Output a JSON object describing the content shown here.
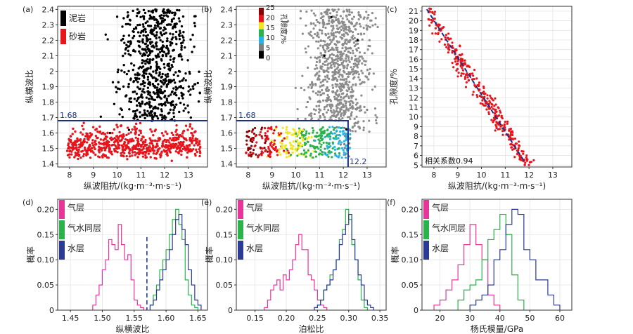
{
  "chart_data": [
    {
      "id": "a",
      "type": "scatter",
      "panel_label": "(a)",
      "xlabel": "纵波阻抗/(kg·m⁻³·m·s⁻¹)",
      "ylabel": "纵横波比",
      "xlim": [
        7.5,
        13.8
      ],
      "ylim": [
        1.38,
        2.42
      ],
      "xticks": [
        8,
        9,
        10,
        11,
        12,
        13
      ],
      "yticks": [
        1.4,
        1.5,
        1.6,
        1.7,
        1.8,
        1.9,
        2.0,
        2.1,
        2.2,
        2.3,
        2.4
      ],
      "grid": true,
      "legend_position": "top-left",
      "series": [
        {
          "name": "泥岩",
          "color": "#000000",
          "sample_points": [
            [
              10.2,
              1.75
            ],
            [
              10.8,
              1.95
            ],
            [
              11.3,
              2.1
            ],
            [
              11.7,
              1.85
            ],
            [
              12.1,
              2.3
            ],
            [
              11.5,
              2.38
            ],
            [
              10.5,
              1.62
            ],
            [
              12.6,
              2.0
            ],
            [
              13.1,
              1.7
            ],
            [
              9.7,
              1.6
            ],
            [
              11.0,
              2.25
            ],
            [
              12.3,
              1.8
            ],
            [
              11.9,
              2.15
            ],
            [
              10.6,
              2.05
            ],
            [
              12.8,
              2.2
            ],
            [
              11.2,
              1.72
            ]
          ]
        },
        {
          "name": "砂岩",
          "color": "#e8141c",
          "sample_points": [
            [
              8.0,
              1.55
            ],
            [
              8.5,
              1.48
            ],
            [
              9.0,
              1.52
            ],
            [
              9.5,
              1.45
            ],
            [
              10.0,
              1.58
            ],
            [
              10.5,
              1.5
            ],
            [
              11.0,
              1.6
            ],
            [
              11.5,
              1.55
            ],
            [
              12.0,
              1.48
            ],
            [
              12.5,
              1.62
            ],
            [
              13.0,
              1.5
            ],
            [
              12.3,
              1.42
            ],
            [
              11.2,
              1.44
            ],
            [
              9.8,
              1.6
            ],
            [
              10.8,
              1.66
            ],
            [
              12.7,
              1.58
            ]
          ]
        }
      ],
      "hline": {
        "y": 1.68,
        "label": "1.68",
        "color": "#1a2f8a"
      }
    },
    {
      "id": "b",
      "type": "scatter",
      "panel_label": "(b)",
      "xlabel": "纵波阻抗/(kg·m⁻³·m·s⁻¹)",
      "ylabel": "纵横波比",
      "xlim": [
        7.5,
        13.8
      ],
      "ylim": [
        1.38,
        2.42
      ],
      "xticks": [
        8,
        9,
        10,
        11,
        12,
        13
      ],
      "yticks": [
        1.4,
        1.5,
        1.6,
        1.7,
        1.8,
        1.9,
        2.0,
        2.1,
        2.2,
        2.3,
        2.4
      ],
      "grid": true,
      "colorbar": {
        "label": "孔隙度/%",
        "ticks": [
          0,
          5,
          10,
          15,
          20,
          25
        ],
        "colors": [
          "#000000",
          "#7f7f7f",
          "#26b5e6",
          "#2bb24a",
          "#f3e51b",
          "#e8141c",
          "#8b0000"
        ]
      },
      "sample_points": [
        [
          8.1,
          1.55,
          22
        ],
        [
          8.6,
          1.5,
          20
        ],
        [
          9.2,
          1.48,
          18
        ],
        [
          9.8,
          1.52,
          16
        ],
        [
          10.3,
          1.56,
          14
        ],
        [
          10.8,
          1.5,
          13
        ],
        [
          11.3,
          1.58,
          12
        ],
        [
          11.8,
          1.5,
          9
        ],
        [
          12.1,
          1.44,
          8
        ],
        [
          11.6,
          1.62,
          10
        ],
        [
          10.5,
          1.8,
          2
        ],
        [
          11.2,
          2.1,
          1
        ],
        [
          12.0,
          1.9,
          2
        ],
        [
          12.6,
          2.2,
          1
        ],
        [
          13.0,
          1.75,
          3
        ],
        [
          11.5,
          2.35,
          1
        ]
      ],
      "hline": {
        "y": 1.68,
        "label": "1.68",
        "color": "#1a2f8a"
      },
      "vline": {
        "x": 12.2,
        "label": "12.2",
        "color": "#1a2f8a"
      }
    },
    {
      "id": "c",
      "type": "scatter",
      "panel_label": "(c)",
      "xlabel": "纵波阻抗/(kg·m⁻³·m·s⁻¹)",
      "ylabel": "孔隙度/%",
      "xlim": [
        7.5,
        13.8
      ],
      "ylim": [
        4.8,
        21.5
      ],
      "xticks": [
        8,
        9,
        10,
        11,
        12,
        13
      ],
      "yticks": [
        5,
        6,
        7,
        8,
        9,
        10,
        11,
        12,
        13,
        14,
        15,
        16,
        17,
        18,
        19,
        20,
        21
      ],
      "grid": true,
      "annotation": "相关系数0.94",
      "fit_line": {
        "x": [
          7.7,
          11.8
        ],
        "y": [
          21.2,
          5.4
        ],
        "color": "#1a2f8a",
        "dash": true
      },
      "series": [
        {
          "name": "",
          "color": "#e8141c",
          "sample_points": [
            [
              7.8,
              21
            ],
            [
              8.0,
              20.2
            ],
            [
              8.3,
              19
            ],
            [
              8.6,
              18.2
            ],
            [
              8.9,
              17
            ],
            [
              9.2,
              16
            ],
            [
              9.5,
              15.2
            ],
            [
              9.8,
              14
            ],
            [
              10.1,
              13
            ],
            [
              10.4,
              12
            ],
            [
              10.7,
              11
            ],
            [
              11.0,
              9.5
            ],
            [
              11.3,
              8.5
            ],
            [
              11.6,
              7
            ],
            [
              11.9,
              6
            ],
            [
              12.2,
              5.5
            ]
          ]
        }
      ]
    },
    {
      "id": "d",
      "type": "histogram",
      "panel_label": "(d)",
      "xlabel": "纵横波比",
      "ylabel": "概率",
      "xlim": [
        1.43,
        1.665
      ],
      "ylim": [
        0,
        0.22
      ],
      "xticks": [
        1.45,
        1.5,
        1.55,
        1.6,
        1.65
      ],
      "xtick_labels": [
        "1.45",
        "1.50",
        "1.55",
        "1.60",
        "1.65"
      ],
      "yticks": [
        0,
        0.05,
        0.1,
        0.15,
        0.2
      ],
      "ytick_labels": [
        "0",
        "0.05",
        "0.10",
        "0.15",
        "0.20"
      ],
      "grid": true,
      "vline": {
        "x": 1.57,
        "color": "#1a2f8a",
        "dash": true
      },
      "legend_position": "top-left",
      "series": [
        {
          "name": "气层",
          "color": "#e8359a",
          "edges": [
            1.485,
            1.49,
            1.495,
            1.5,
            1.505,
            1.51,
            1.515,
            1.52,
            1.525,
            1.53,
            1.535,
            1.54,
            1.545,
            1.55,
            1.555,
            1.56,
            1.565
          ],
          "values": [
            0.01,
            0.03,
            0.05,
            0.08,
            0.1,
            0.14,
            0.13,
            0.12,
            0.17,
            0.13,
            0.1,
            0.11,
            0.06,
            0.02,
            0.01,
            0.005
          ]
        },
        {
          "name": "气水同层",
          "color": "#2bb24a",
          "edges": [
            1.575,
            1.58,
            1.585,
            1.59,
            1.595,
            1.6,
            1.605,
            1.61,
            1.615,
            1.62,
            1.625,
            1.63,
            1.635,
            1.64,
            1.645,
            1.65
          ],
          "values": [
            0.01,
            0.03,
            0.05,
            0.08,
            0.1,
            0.12,
            0.15,
            0.18,
            0.2,
            0.17,
            0.14,
            0.06,
            0.03,
            0.01,
            0.005
          ]
        },
        {
          "name": "水层",
          "color": "#2b3a94",
          "edges": [
            1.575,
            1.58,
            1.585,
            1.59,
            1.595,
            1.6,
            1.605,
            1.61,
            1.615,
            1.62,
            1.625,
            1.63,
            1.635,
            1.64,
            1.645,
            1.65,
            1.655
          ],
          "values": [
            0.01,
            0.02,
            0.04,
            0.06,
            0.08,
            0.1,
            0.12,
            0.15,
            0.18,
            0.19,
            0.16,
            0.13,
            0.08,
            0.05,
            0.02,
            0.01
          ]
        }
      ]
    },
    {
      "id": "e",
      "type": "histogram",
      "panel_label": "(e)",
      "xlabel": "泊松比",
      "ylabel": "概率",
      "xlim": [
        0.12,
        0.36
      ],
      "ylim": [
        0,
        0.22
      ],
      "xticks": [
        0.15,
        0.2,
        0.25,
        0.3,
        0.35
      ],
      "xtick_labels": [
        "0.15",
        "0.20",
        "0.25",
        "0.30",
        "0.35"
      ],
      "yticks": [
        0,
        0.05,
        0.1,
        0.15,
        0.2
      ],
      "ytick_labels": [
        "0",
        "0.05",
        "0.10",
        "0.15",
        "0.20"
      ],
      "grid": true,
      "legend_position": "top-left",
      "series": [
        {
          "name": "气层",
          "color": "#e8359a",
          "edges": [
            0.165,
            0.17,
            0.175,
            0.18,
            0.185,
            0.19,
            0.195,
            0.2,
            0.205,
            0.21,
            0.215,
            0.22,
            0.225,
            0.23,
            0.235,
            0.24,
            0.245,
            0.25,
            0.255,
            0.26,
            0.265
          ],
          "values": [
            0.005,
            0.02,
            0.04,
            0.05,
            0.06,
            0.04,
            0.07,
            0.06,
            0.08,
            0.1,
            0.13,
            0.15,
            0.12,
            0.12,
            0.07,
            0.06,
            0.04,
            0.02,
            0.01,
            0.005
          ]
        },
        {
          "name": "气水同层",
          "color": "#2bb24a",
          "edges": [
            0.245,
            0.25,
            0.255,
            0.26,
            0.265,
            0.27,
            0.275,
            0.28,
            0.285,
            0.29,
            0.295,
            0.3,
            0.305,
            0.31,
            0.315,
            0.32,
            0.325,
            0.33
          ],
          "values": [
            0.005,
            0.01,
            0.02,
            0.04,
            0.05,
            0.07,
            0.08,
            0.1,
            0.14,
            0.16,
            0.2,
            0.18,
            0.13,
            0.1,
            0.06,
            0.02,
            0.005
          ]
        },
        {
          "name": "水层",
          "color": "#2b3a94",
          "edges": [
            0.245,
            0.25,
            0.255,
            0.26,
            0.265,
            0.27,
            0.275,
            0.28,
            0.285,
            0.29,
            0.295,
            0.3,
            0.305,
            0.31,
            0.315,
            0.32,
            0.325,
            0.33,
            0.335,
            0.34
          ],
          "values": [
            0.005,
            0.01,
            0.02,
            0.04,
            0.05,
            0.06,
            0.08,
            0.1,
            0.13,
            0.15,
            0.17,
            0.19,
            0.14,
            0.1,
            0.07,
            0.05,
            0.02,
            0.01,
            0.005
          ]
        }
      ]
    },
    {
      "id": "f",
      "type": "histogram",
      "panel_label": "(f)",
      "xlabel": "杨氏模量/GPa",
      "ylabel": "概率",
      "xlim": [
        14,
        64
      ],
      "ylim": [
        0,
        0.22
      ],
      "xticks": [
        20,
        30,
        40,
        50,
        60
      ],
      "xtick_labels": [
        "20",
        "30",
        "40",
        "50",
        "60"
      ],
      "yticks": [
        0,
        0.05,
        0.1,
        0.15,
        0.2
      ],
      "ytick_labels": [
        "0",
        "0.05",
        "0.10",
        "0.15",
        "0.20"
      ],
      "grid": true,
      "legend_position": "top-left",
      "series": [
        {
          "name": "气层",
          "color": "#e8359a",
          "edges": [
            18,
            20,
            22,
            24,
            26,
            28,
            30,
            32,
            34,
            36,
            38,
            40
          ],
          "values": [
            0.01,
            0.02,
            0.04,
            0.06,
            0.09,
            0.13,
            0.17,
            0.13,
            0.1,
            0.03,
            0.01
          ]
        },
        {
          "name": "气水同层",
          "color": "#2bb24a",
          "edges": [
            26,
            28,
            30,
            32,
            34,
            36,
            38,
            40,
            42,
            44,
            46,
            48
          ],
          "values": [
            0.02,
            0.04,
            0.05,
            0.06,
            0.1,
            0.14,
            0.16,
            0.19,
            0.15,
            0.07,
            0.02
          ]
        },
        {
          "name": "水层",
          "color": "#2b3a94",
          "edges": [
            30,
            32,
            34,
            36,
            38,
            40,
            42,
            44,
            46,
            48,
            50,
            52,
            54,
            56,
            58,
            60
          ],
          "values": [
            0.01,
            0.02,
            0.03,
            0.05,
            0.1,
            0.12,
            0.17,
            0.2,
            0.19,
            0.12,
            0.1,
            0.06,
            0.06,
            0.03,
            0.01
          ]
        }
      ]
    }
  ]
}
